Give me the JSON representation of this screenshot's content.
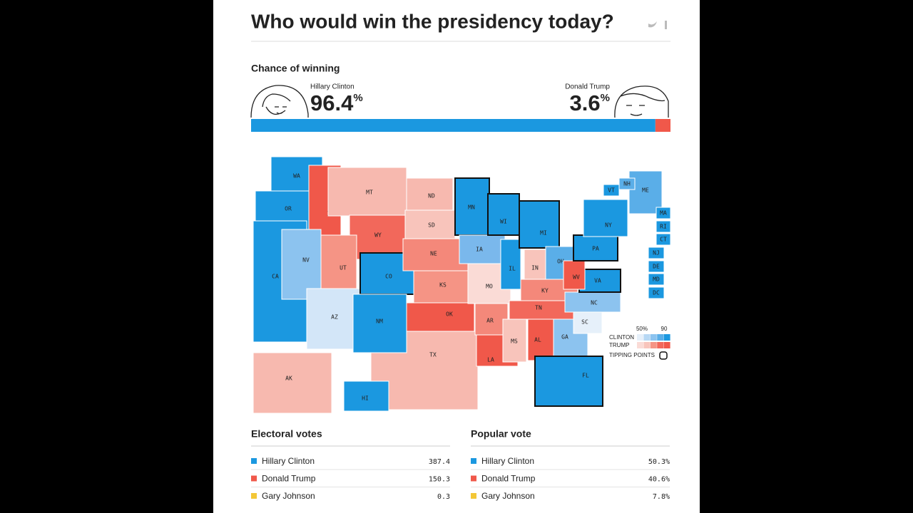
{
  "header": {
    "title": "Who would win the presidency today?"
  },
  "chance": {
    "heading": "Chance of winning",
    "candidates": [
      {
        "name": "Hillary Clinton",
        "value": 96.4,
        "unit": "%",
        "color": "#1b98e0"
      },
      {
        "name": "Donald Trump",
        "value": 3.6,
        "unit": "%",
        "color": "#f0584a"
      }
    ]
  },
  "map": {
    "states": [
      {
        "label": "TX",
        "color": "#f7b9af"
      },
      {
        "label": "WA",
        "color": "#1b98e0"
      },
      {
        "label": "OR",
        "color": "#1b98e0"
      },
      {
        "label": "CA",
        "color": "#1b98e0"
      },
      {
        "label": "ID",
        "color": "#f0584a"
      },
      {
        "label": "NV",
        "color": "#8cc3ef"
      },
      {
        "label": "MT",
        "color": "#f7b9af"
      },
      {
        "label": "WY",
        "color": "#f2685b"
      },
      {
        "label": "UT",
        "color": "#f59485"
      },
      {
        "label": "AZ",
        "color": "#d3e6f8"
      },
      {
        "label": "CO",
        "color": "#1b98e0",
        "tipping": true
      },
      {
        "label": "NM",
        "color": "#1b98e0"
      },
      {
        "label": "ND",
        "color": "#f7b9af"
      },
      {
        "label": "SD",
        "color": "#f8c4bb"
      },
      {
        "label": "NE",
        "color": "#f4887a"
      },
      {
        "label": "KS",
        "color": "#f59485"
      },
      {
        "label": "OK",
        "color": "#f0584a"
      },
      {
        "label": "MN",
        "color": "#1b98e0",
        "tipping": true
      },
      {
        "label": "IA",
        "color": "#7ab8ec"
      },
      {
        "label": "MO",
        "color": "#fadbd6"
      },
      {
        "label": "AR",
        "color": "#f4887a"
      },
      {
        "label": "LA",
        "color": "#f0584a"
      },
      {
        "label": "WI",
        "color": "#1b98e0",
        "tipping": true
      },
      {
        "label": "IL",
        "color": "#1b98e0"
      },
      {
        "label": "MI",
        "color": "#1b98e0",
        "tipping": true
      },
      {
        "label": "IN",
        "color": "#f8c4bb"
      },
      {
        "label": "OH",
        "color": "#5aaee8"
      },
      {
        "label": "KY",
        "color": "#f4887a"
      },
      {
        "label": "TN",
        "color": "#f2685b"
      },
      {
        "label": "MS",
        "color": "#f8c4bb"
      },
      {
        "label": "AL",
        "color": "#f0584a"
      },
      {
        "label": "GA",
        "color": "#8cc3ef"
      },
      {
        "label": "FL",
        "color": "#1b98e0",
        "tipping": true
      },
      {
        "label": "SC",
        "color": "#e6f0fa"
      },
      {
        "label": "NC",
        "color": "#8cc3ef"
      },
      {
        "label": "VA",
        "color": "#1b98e0",
        "tipping": true
      },
      {
        "label": "WV",
        "color": "#f0584a"
      },
      {
        "label": "PA",
        "color": "#1b98e0",
        "tipping": true
      },
      {
        "label": "NY",
        "color": "#1b98e0"
      },
      {
        "label": "ME",
        "color": "#5aaee8"
      },
      {
        "label": "VT",
        "color": "#1b98e0"
      },
      {
        "label": "NH",
        "color": "#5aaee8"
      },
      {
        "label": "MA",
        "color": "#1b98e0"
      },
      {
        "label": "RI",
        "color": "#1b98e0"
      },
      {
        "label": "CT",
        "color": "#1b98e0"
      },
      {
        "label": "NJ",
        "color": "#1b98e0"
      },
      {
        "label": "DE",
        "color": "#1b98e0"
      },
      {
        "label": "MD",
        "color": "#1b98e0"
      },
      {
        "label": "DC",
        "color": "#1b98e0"
      },
      {
        "label": "AK",
        "color": "#f7b9af"
      },
      {
        "label": "HI",
        "color": "#1b98e0"
      }
    ],
    "legend": {
      "low": "50%",
      "high": "90",
      "clinton": "CLINTON",
      "trump": "TRUMP",
      "tipping": "TIPPING POINTS",
      "clinton_colors": [
        "#e6f0fa",
        "#b7d8f4",
        "#8cc3ef",
        "#5aaee8",
        "#1b98e0"
      ],
      "trump_colors": [
        "#fadbd6",
        "#f8c4bb",
        "#f59485",
        "#f2685b",
        "#f0584a"
      ]
    }
  },
  "electoral": {
    "heading": "Electoral votes",
    "rows": [
      {
        "name": "Hillary Clinton",
        "value": "387.4",
        "color": "#1b98e0"
      },
      {
        "name": "Donald Trump",
        "value": "150.3",
        "color": "#f0584a"
      },
      {
        "name": "Gary Johnson",
        "value": "0.3",
        "color": "#f3c737"
      }
    ]
  },
  "popular": {
    "heading": "Popular vote",
    "rows": [
      {
        "name": "Hillary Clinton",
        "value": "50.3%",
        "color": "#1b98e0"
      },
      {
        "name": "Donald Trump",
        "value": "40.6%",
        "color": "#f0584a"
      },
      {
        "name": "Gary Johnson",
        "value": "7.8%",
        "color": "#f3c737"
      }
    ]
  }
}
